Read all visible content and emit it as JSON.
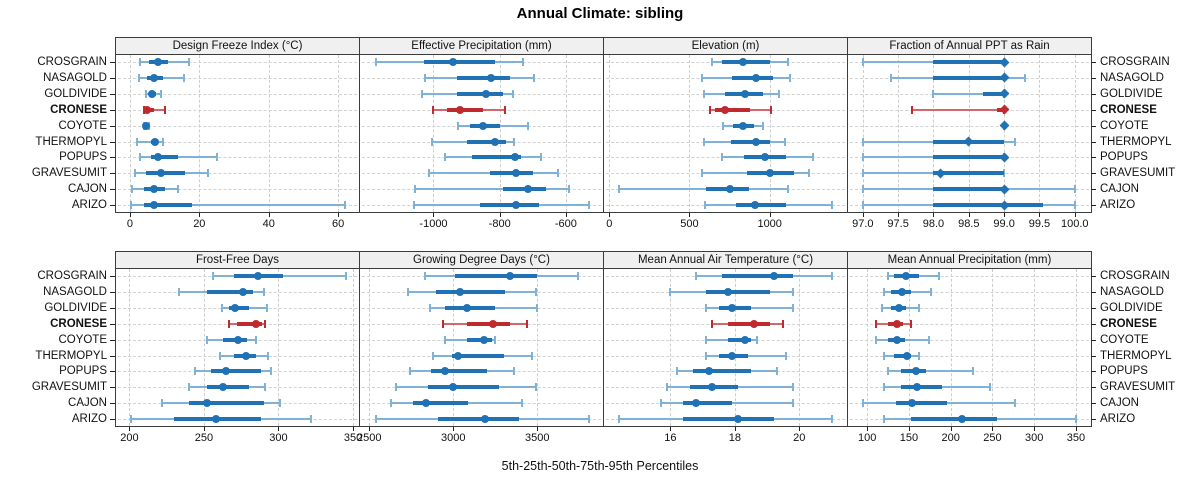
{
  "title": "Annual Climate: sibling",
  "caption": "5th-25th-50th-75th-95th Percentiles",
  "sites": [
    "CROSGRAIN",
    "NASAGOLD",
    "GOLDIVIDE",
    "CRONESE",
    "COYOTE",
    "THERMOPYL",
    "POPUPS",
    "GRAVESUMIT",
    "CAJON",
    "ARIZO"
  ],
  "highlight_site": "CRONESE",
  "colors": {
    "series_main": "#2171b5",
    "series_light": "#7fb2d6",
    "highlight_main": "#bf2a2e",
    "highlight_light": "#d2686c",
    "header_bg": "#f0f0f0",
    "panel_border": "#3c3c3c",
    "grid": "#cdcdcd",
    "text": "#111111"
  },
  "chart_data": [
    {
      "type": "dotplot-percentiles",
      "title": "Design Freeze Index (°C)",
      "row": 0,
      "col": 0,
      "xlim": [
        -4,
        66
      ],
      "ticks": [
        0,
        20,
        40,
        60
      ],
      "tick_labels": [
        "0",
        "20",
        "40",
        "60"
      ],
      "marker": "circle",
      "percentile_labels": [
        "p5",
        "p25",
        "p50",
        "p75",
        "p95"
      ],
      "series": {
        "CROSGRAIN": [
          3,
          5.5,
          8,
          11,
          17
        ],
        "NASAGOLD": [
          2.5,
          5,
          7,
          9.5,
          15.5
        ],
        "GOLDIVIDE": [
          4.5,
          5.5,
          6.5,
          7.5,
          9
        ],
        "CRONESE": [
          4,
          4.5,
          5,
          7,
          10
        ],
        "COYOTE": [
          4,
          4.3,
          4.6,
          5,
          5.5
        ],
        "THERMOPYL": [
          2,
          6,
          7.2,
          8,
          9.5
        ],
        "POPUPS": [
          3,
          6,
          8,
          14,
          25
        ],
        "GRAVESUMIT": [
          1.5,
          4.5,
          9,
          16,
          22.5
        ],
        "CAJON": [
          0.5,
          4,
          7,
          10,
          14
        ],
        "ARIZO": [
          0.3,
          4,
          7,
          18,
          62
        ]
      }
    },
    {
      "type": "dotplot-percentiles",
      "title": "Effective Precipitation (mm)",
      "row": 0,
      "col": 1,
      "xlim": [
        -1222,
        -488
      ],
      "ticks": [
        -1000,
        -800,
        -600
      ],
      "tick_labels": [
        "-1000",
        "-800",
        "-600"
      ],
      "marker": "circle",
      "percentile_labels": [
        "p5",
        "p25",
        "p50",
        "p75",
        "p95"
      ],
      "series": {
        "CROSGRAIN": [
          -1175,
          -1030,
          -940,
          -815,
          -730
        ],
        "NASAGOLD": [
          -1025,
          -930,
          -825,
          -770,
          -695
        ],
        "GOLDIVIDE": [
          -1035,
          -930,
          -840,
          -790,
          -760
        ],
        "CRONESE": [
          -1000,
          -960,
          -920,
          -850,
          -785
        ],
        "COYOTE": [
          -925,
          -890,
          -850,
          -800,
          -715
        ],
        "THERMOPYL": [
          -1005,
          -900,
          -815,
          -780,
          -758
        ],
        "POPUPS": [
          -965,
          -885,
          -755,
          -735,
          -675
        ],
        "GRAVESUMIT": [
          -1015,
          -830,
          -750,
          -700,
          -625
        ],
        "CAJON": [
          -1055,
          -790,
          -715,
          -660,
          -590
        ],
        "ARIZO": [
          -1060,
          -860,
          -750,
          -680,
          -530
        ]
      }
    },
    {
      "type": "dotplot-percentiles",
      "title": "Elevation (m)",
      "row": 0,
      "col": 2,
      "xlim": [
        -33,
        1482
      ],
      "ticks": [
        0,
        500,
        1000
      ],
      "tick_labels": [
        "0",
        "500",
        "1000"
      ],
      "marker": "circle",
      "percentile_labels": [
        "p5",
        "p25",
        "p50",
        "p75",
        "p95"
      ],
      "series": {
        "CROSGRAIN": [
          640,
          700,
          835,
          1000,
          1115
        ],
        "NASAGOLD": [
          577,
          765,
          917,
          1020,
          1124
        ],
        "GOLDIVIDE": [
          590,
          720,
          845,
          960,
          1060
        ],
        "CRONESE": [
          630,
          660,
          722,
          880,
          1010
        ],
        "COYOTE": [
          710,
          770,
          835,
          900,
          960
        ],
        "THERMOPYL": [
          590,
          760,
          915,
          1000,
          1093
        ],
        "POPUPS": [
          700,
          840,
          968,
          1100,
          1268
        ],
        "GRAVESUMIT": [
          577,
          860,
          1000,
          1150,
          1247
        ],
        "CAJON": [
          62,
          600,
          753,
          870,
          1113
        ],
        "ARIZO": [
          598,
          790,
          907,
          1100,
          1390
        ]
      }
    },
    {
      "type": "dotplot-percentiles",
      "title": "Fraction of Annual PPT as Rain",
      "row": 0,
      "col": 3,
      "xlim": [
        96.79,
        100.23
      ],
      "ticks": [
        97.0,
        97.5,
        98.0,
        98.5,
        99.0,
        99.5,
        100.0
      ],
      "tick_labels": [
        "97.0",
        "97.5",
        "98.0",
        "98.5",
        "99.0",
        "99.5",
        "100.0"
      ],
      "marker": "diamond",
      "percentile_labels": [
        "p5",
        "p25",
        "p50",
        "p75",
        "p95"
      ],
      "series": {
        "CROSGRAIN": [
          97.0,
          98.0,
          99.0,
          99.0,
          99.0
        ],
        "NASAGOLD": [
          97.4,
          98.0,
          99.0,
          99.0,
          99.3
        ],
        "GOLDIVIDE": [
          98.0,
          98.7,
          99.0,
          99.0,
          99.0
        ],
        "CRONESE": [
          97.7,
          98.9,
          99.0,
          99.0,
          99.0
        ],
        "COYOTE": [
          99.0,
          99.0,
          99.0,
          99.0,
          99.0
        ],
        "THERMOPYL": [
          97.0,
          98.0,
          98.5,
          99.0,
          99.15
        ],
        "POPUPS": [
          97.0,
          98.0,
          99.0,
          99.0,
          99.0
        ],
        "GRAVESUMIT": [
          97.0,
          98.0,
          98.1,
          99.0,
          99.0
        ],
        "CAJON": [
          97.0,
          98.0,
          99.0,
          99.0,
          100.0
        ],
        "ARIZO": [
          97.0,
          98.0,
          99.0,
          99.55,
          100.0
        ]
      }
    },
    {
      "type": "dotplot-percentiles",
      "title": "Frost-Free Days",
      "row": 1,
      "col": 0,
      "xlim": [
        191,
        354
      ],
      "ticks": [
        200,
        250,
        300,
        350
      ],
      "tick_labels": [
        "200",
        "250",
        "300",
        "350"
      ],
      "marker": "circle",
      "percentile_labels": [
        "p5",
        "p25",
        "p50",
        "p75",
        "p95"
      ],
      "series": {
        "CROSGRAIN": [
          256,
          270,
          286,
          303,
          345
        ],
        "NASAGOLD": [
          233,
          252,
          276,
          283,
          290
        ],
        "GOLDIVIDE": [
          262,
          267,
          271,
          280,
          292
        ],
        "CRONESE": [
          267,
          272,
          285,
          289,
          291
        ],
        "COYOTE": [
          252,
          263,
          273,
          279,
          285
        ],
        "THERMOPYL": [
          261,
          270,
          278,
          285,
          293
        ],
        "POPUPS": [
          244,
          255,
          265,
          288,
          295
        ],
        "GRAVESUMIT": [
          240,
          252,
          263,
          280,
          291
        ],
        "CAJON": [
          222,
          240,
          252,
          290,
          301
        ],
        "ARIZO": [
          201,
          230,
          258,
          288,
          322
        ]
      }
    },
    {
      "type": "dotplot-percentiles",
      "title": "Growing Degree Days (°C)",
      "row": 1,
      "col": 1,
      "xlim": [
        2445,
        3891
      ],
      "ticks": [
        2500,
        3000,
        3500
      ],
      "tick_labels": [
        "2500",
        "3000",
        "3500"
      ],
      "marker": "circle",
      "percentile_labels": [
        "p5",
        "p25",
        "p50",
        "p75",
        "p95"
      ],
      "series": {
        "CROSGRAIN": [
          2830,
          3010,
          3340,
          3500,
          3740
        ],
        "NASAGOLD": [
          2730,
          2900,
          3040,
          3310,
          3490
        ],
        "GOLDIVIDE": [
          2860,
          2950,
          3080,
          3250,
          3500
        ],
        "CRONESE": [
          2940,
          3080,
          3235,
          3335,
          3440
        ],
        "COYOTE": [
          2950,
          3080,
          3180,
          3230,
          3250
        ],
        "THERMOPYL": [
          2880,
          2990,
          3030,
          3300,
          3470
        ],
        "POPUPS": [
          2740,
          2870,
          2950,
          3200,
          3360
        ],
        "GRAVESUMIT": [
          2660,
          2850,
          3000,
          3270,
          3490
        ],
        "CAJON": [
          2630,
          2760,
          2840,
          3090,
          3410
        ],
        "ARIZO": [
          2540,
          2910,
          3190,
          3390,
          3810
        ]
      }
    },
    {
      "type": "dotplot-percentiles",
      "title": "Mean Annual Air Temperature (°C)",
      "row": 1,
      "col": 2,
      "xlim": [
        13.94,
        21.48
      ],
      "ticks": [
        16,
        18,
        20
      ],
      "tick_labels": [
        "16",
        "18",
        "20"
      ],
      "marker": "circle",
      "percentile_labels": [
        "p5",
        "p25",
        "p50",
        "p75",
        "p95"
      ],
      "series": {
        "CROSGRAIN": [
          16.8,
          17.6,
          19.2,
          19.8,
          21.0
        ],
        "NASAGOLD": [
          16.0,
          17.1,
          17.8,
          19.1,
          19.8
        ],
        "GOLDIVIDE": [
          17.1,
          17.5,
          17.9,
          18.5,
          19.8
        ],
        "CRONESE": [
          17.3,
          17.8,
          18.6,
          19.1,
          19.5
        ],
        "COYOTE": [
          17.1,
          17.8,
          18.3,
          18.5,
          18.7
        ],
        "THERMOPYL": [
          17.1,
          17.5,
          17.9,
          18.4,
          19.6
        ],
        "POPUPS": [
          16.2,
          16.7,
          17.2,
          18.5,
          19.3
        ],
        "GRAVESUMIT": [
          15.9,
          16.6,
          17.3,
          18.1,
          19.8
        ],
        "CAJON": [
          15.7,
          16.4,
          16.8,
          17.9,
          19.8
        ],
        "ARIZO": [
          14.4,
          16.4,
          18.1,
          19.2,
          21.0
        ]
      }
    },
    {
      "type": "dotplot-percentiles",
      "title": "Mean Annual Precipitation (mm)",
      "row": 1,
      "col": 3,
      "xlim": [
        77,
        368
      ],
      "ticks": [
        100,
        150,
        200,
        250,
        300,
        350
      ],
      "tick_labels": [
        "100",
        "150",
        "200",
        "250",
        "300",
        "350"
      ],
      "marker": "circle",
      "percentile_labels": [
        "p5",
        "p25",
        "p50",
        "p75",
        "p95"
      ],
      "series": {
        "CROSGRAIN": [
          125,
          132,
          147,
          162,
          186
        ],
        "NASAGOLD": [
          120,
          128,
          142,
          152,
          176
        ],
        "GOLDIVIDE": [
          118,
          128,
          138,
          146,
          162
        ],
        "CRONESE": [
          111,
          125,
          136,
          143,
          152
        ],
        "COYOTE": [
          111,
          125,
          136,
          145,
          174
        ],
        "THERMOPYL": [
          120,
          132,
          148,
          152,
          162
        ],
        "POPUPS": [
          125,
          140,
          158,
          170,
          227
        ],
        "GRAVESUMIT": [
          120,
          140,
          160,
          190,
          247
        ],
        "CAJON": [
          95,
          135,
          154,
          195,
          277
        ],
        "ARIZO": [
          120,
          152,
          213,
          255,
          350
        ]
      }
    }
  ]
}
